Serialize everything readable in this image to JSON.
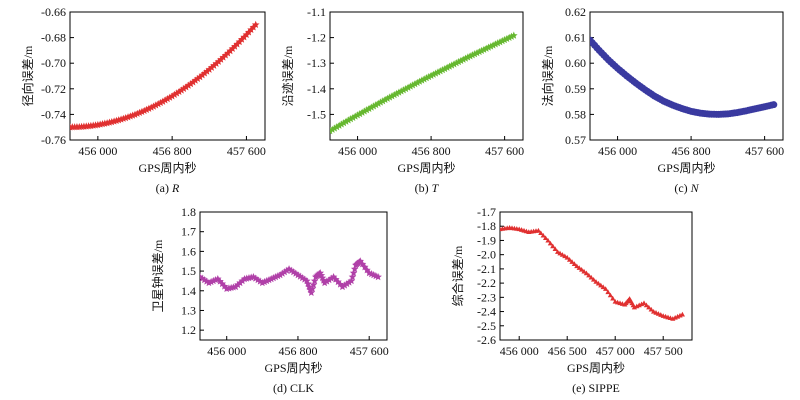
{
  "chart_data": [
    {
      "id": "R",
      "type": "scatter",
      "caption_prefix": "(a) ",
      "caption_symbol": "R",
      "caption_italic": true,
      "xlabel": "GPS周内秒",
      "ylabel": "径向误差/m",
      "xlim": [
        455700,
        457800
      ],
      "ylim": [
        -0.76,
        -0.66
      ],
      "xticks": [
        456000,
        456800,
        457600
      ],
      "xtick_labels": [
        "456 000",
        "456 800",
        "457 600"
      ],
      "yticks": [
        -0.76,
        -0.74,
        -0.72,
        -0.7,
        -0.68,
        -0.66
      ],
      "ytick_labels": [
        "-0.76",
        "-0.74",
        "-0.72",
        "-0.70",
        "-0.68",
        "-0.66"
      ],
      "marker": "star",
      "color": "#e03030",
      "x": [
        455700,
        455800,
        455900,
        456000,
        456100,
        456200,
        456300,
        456400,
        456500,
        456600,
        456700,
        456800,
        456900,
        457000,
        457100,
        457200,
        457300,
        457400,
        457500,
        457600,
        457700
      ],
      "y": [
        -0.75,
        -0.7498,
        -0.7492,
        -0.7482,
        -0.7468,
        -0.745,
        -0.7428,
        -0.7402,
        -0.7372,
        -0.7338,
        -0.73,
        -0.7258,
        -0.7212,
        -0.7162,
        -0.7108,
        -0.705,
        -0.6988,
        -0.6922,
        -0.6852,
        -0.6778,
        -0.67
      ]
    },
    {
      "id": "T",
      "type": "scatter",
      "caption_prefix": "(b) ",
      "caption_symbol": "T",
      "caption_italic": true,
      "xlabel": "GPS周内秒",
      "ylabel": "沿迹误差/m",
      "xlim": [
        455700,
        457800
      ],
      "ylim": [
        -1.6,
        -1.1
      ],
      "xticks": [
        456000,
        456800,
        457600
      ],
      "xtick_labels": [
        "456 000",
        "456 800",
        "457 600"
      ],
      "yticks": [
        -1.5,
        -1.4,
        -1.3,
        -1.2,
        -1.1
      ],
      "ytick_labels": [
        "-1.5",
        "-1.4",
        "-1.3",
        "-1.2",
        "-1.1"
      ],
      "marker": "star",
      "color": "#66b830",
      "x": [
        455700,
        455800,
        455900,
        456000,
        456100,
        456200,
        456300,
        456400,
        456500,
        456600,
        456700,
        456800,
        456900,
        457000,
        457100,
        457200,
        457300,
        457400,
        457500,
        457600,
        457700
      ],
      "y": [
        -1.565,
        -1.544,
        -1.523,
        -1.503,
        -1.483,
        -1.463,
        -1.443,
        -1.424,
        -1.405,
        -1.386,
        -1.367,
        -1.349,
        -1.331,
        -1.313,
        -1.295,
        -1.277,
        -1.26,
        -1.243,
        -1.226,
        -1.209,
        -1.192
      ]
    },
    {
      "id": "N",
      "type": "scatter",
      "caption_prefix": "(c) ",
      "caption_symbol": "N",
      "caption_italic": true,
      "xlabel": "GPS周内秒",
      "ylabel": "法向误差/m",
      "xlim": [
        455700,
        457800
      ],
      "ylim": [
        0.57,
        0.62
      ],
      "xticks": [
        456000,
        456800,
        457600
      ],
      "xtick_labels": [
        "456 000",
        "456 800",
        "457 600"
      ],
      "yticks": [
        0.57,
        0.58,
        0.59,
        0.6,
        0.61,
        0.62
      ],
      "ytick_labels": [
        "0.57",
        "0.58",
        "0.59",
        "0.60",
        "0.61",
        "0.62"
      ],
      "marker": "circle",
      "color": "#3a3aa0",
      "x": [
        455700,
        455800,
        455900,
        456000,
        456100,
        456200,
        456300,
        456400,
        456500,
        456600,
        456700,
        456800,
        456900,
        457000,
        457100,
        457200,
        457300,
        457400,
        457500,
        457600,
        457700
      ],
      "y": [
        0.609,
        0.605,
        0.6013,
        0.598,
        0.595,
        0.5922,
        0.5896,
        0.5872,
        0.5852,
        0.5836,
        0.5823,
        0.5812,
        0.5805,
        0.5801,
        0.58,
        0.5802,
        0.5807,
        0.5814,
        0.5822,
        0.583,
        0.5838
      ]
    },
    {
      "id": "CLK",
      "type": "line",
      "caption_prefix": "(d) ",
      "caption_symbol": "CLK",
      "caption_italic": false,
      "xlabel": "GPS周内秒",
      "ylabel": "卫星钟误差/m",
      "xlim": [
        455700,
        457800
      ],
      "ylim": [
        1.15,
        1.8
      ],
      "xticks": [
        456000,
        456800,
        457600
      ],
      "xtick_labels": [
        "456 000",
        "456 800",
        "457 600"
      ],
      "yticks": [
        1.2,
        1.3,
        1.4,
        1.5,
        1.6,
        1.7,
        1.8
      ],
      "ytick_labels": [
        "1.2",
        "1.3",
        "1.4",
        "1.5",
        "1.6",
        "1.7",
        "1.8"
      ],
      "marker": "star",
      "color": "#b040a8",
      "x": [
        455700,
        455800,
        455900,
        456000,
        456100,
        456200,
        456300,
        456400,
        456500,
        456600,
        456700,
        456800,
        456900,
        456950,
        457000,
        457050,
        457100,
        457200,
        457300,
        457400,
        457450,
        457500,
        457600,
        457700
      ],
      "y": [
        1.47,
        1.44,
        1.46,
        1.41,
        1.42,
        1.46,
        1.47,
        1.44,
        1.46,
        1.48,
        1.51,
        1.48,
        1.45,
        1.39,
        1.47,
        1.49,
        1.44,
        1.47,
        1.42,
        1.45,
        1.53,
        1.55,
        1.49,
        1.47
      ]
    },
    {
      "id": "SIPPE",
      "type": "line",
      "caption_prefix": "(e) ",
      "caption_symbol": "SIPPE",
      "caption_italic": false,
      "xlabel": "GPS周内秒",
      "ylabel": "综合误差/m",
      "xlim": [
        455800,
        457800
      ],
      "ylim": [
        -2.6,
        -1.7
      ],
      "xticks": [
        456000,
        456500,
        457000,
        457500
      ],
      "xtick_labels": [
        "456 000",
        "456 500",
        "457 000",
        "457 500"
      ],
      "yticks": [
        -2.6,
        -2.5,
        -2.4,
        -2.3,
        -2.2,
        -2.1,
        -2.0,
        -1.9,
        -1.8,
        -1.7
      ],
      "ytick_labels": [
        "-2.6",
        "-2.5",
        "-2.4",
        "-2.3",
        "-2.2",
        "-2.1",
        "-2.0",
        "-1.9",
        "-1.8",
        "-1.7"
      ],
      "marker": "triangle",
      "color": "#e03030",
      "x": [
        455800,
        455900,
        456000,
        456100,
        456200,
        456300,
        456400,
        456500,
        456600,
        456700,
        456800,
        456900,
        457000,
        457100,
        457150,
        457200,
        457300,
        457400,
        457500,
        457600,
        457700
      ],
      "y": [
        -1.82,
        -1.81,
        -1.82,
        -1.84,
        -1.83,
        -1.9,
        -1.98,
        -2.02,
        -2.08,
        -2.13,
        -2.19,
        -2.24,
        -2.33,
        -2.35,
        -2.31,
        -2.37,
        -2.34,
        -2.4,
        -2.43,
        -2.45,
        -2.42
      ]
    }
  ]
}
